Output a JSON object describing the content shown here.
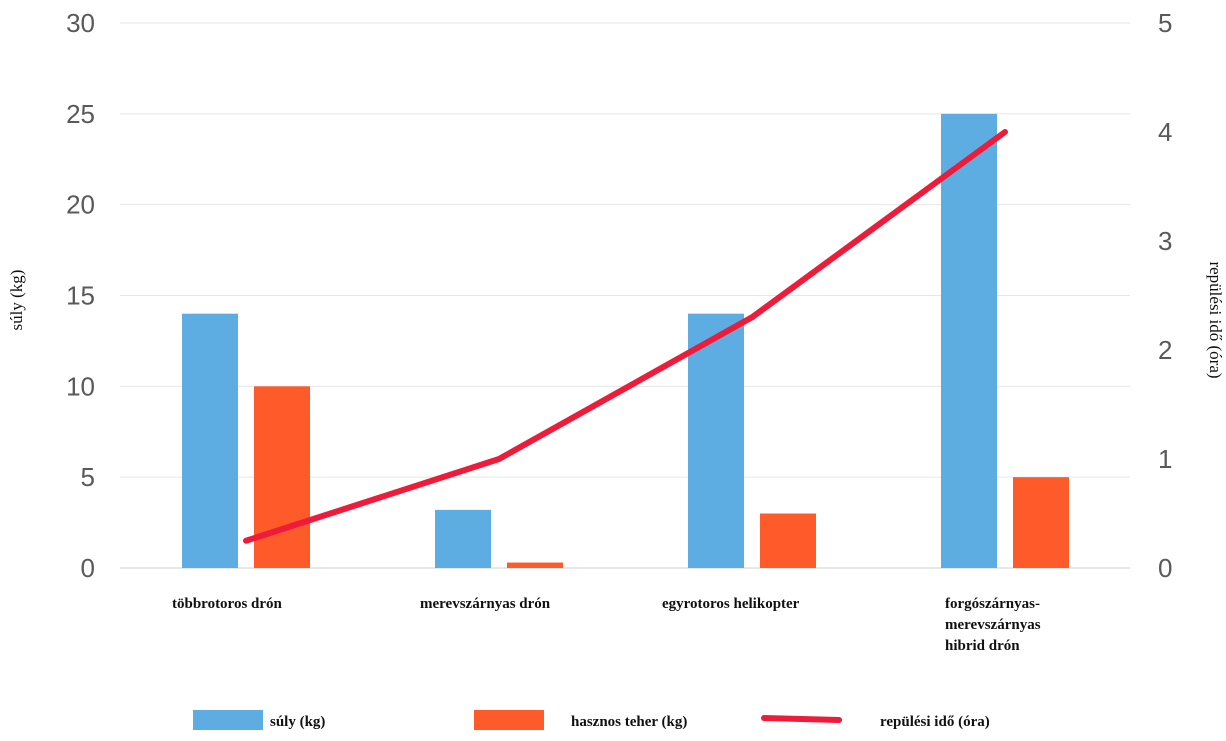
{
  "chart_data": {
    "type": "bar",
    "categories": [
      [
        "többrotoros drón"
      ],
      [
        "merevszárnyas drón"
      ],
      [
        "egyrotoros helikopter"
      ],
      [
        "forgószárnyas-",
        "merevszárnyas",
        "hibrid drón"
      ]
    ],
    "series": [
      {
        "name": "súly (kg)",
        "type": "bar",
        "axis": "left",
        "color": "#5dade2",
        "values": [
          14,
          3.2,
          14,
          25
        ]
      },
      {
        "name": "hasznos teher (kg)",
        "type": "bar",
        "axis": "left",
        "color": "#ff5a2a",
        "values": [
          10,
          0.3,
          3,
          5
        ]
      },
      {
        "name": "repülési idő (óra)",
        "type": "line",
        "axis": "right",
        "color": "#ee1c3a",
        "values": [
          0.25,
          1,
          2.3,
          4
        ]
      }
    ],
    "ylabel": "súly (kg)",
    "y2label": "repülési idő (óra)",
    "ylim": [
      0,
      30
    ],
    "y2lim": [
      0,
      5
    ],
    "yticks": [
      "0",
      "5",
      "10",
      "15",
      "20",
      "25",
      "30"
    ],
    "y2ticks": [
      "0",
      "1",
      "2",
      "3",
      "4",
      "5"
    ],
    "grid": true,
    "legend_position": "bottom"
  }
}
